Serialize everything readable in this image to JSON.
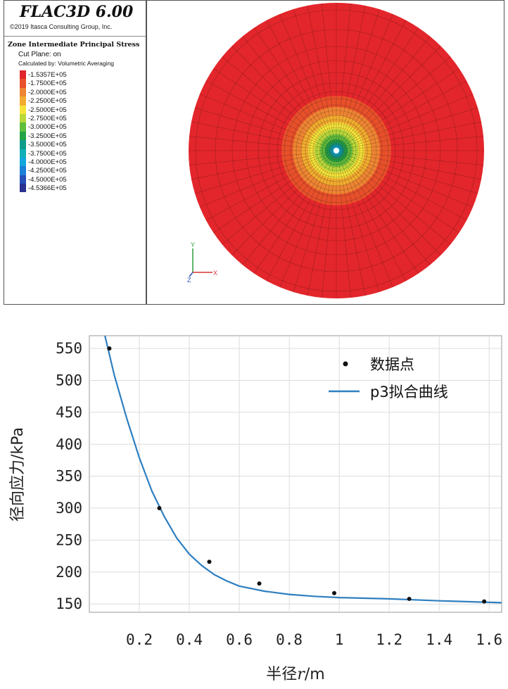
{
  "flac": {
    "title": "FLAC3D 6.00",
    "copyright": "©2019 Itasca Consulting Group, Inc.",
    "plot_title": "Zone Intermediate Principal Stress",
    "cut_plane": "Cut Plane: on",
    "calculated_by": "Calculated by: Volumetric Averaging",
    "legend": [
      {
        "label": "-1.5357E+05",
        "color": "#e3262b"
      },
      {
        "label": "-1.7500E+05",
        "color": "#e8502a"
      },
      {
        "label": "-2.0000E+05",
        "color": "#ee8532"
      },
      {
        "label": "-2.2500E+05",
        "color": "#f3ad2e"
      },
      {
        "label": "-2.5000E+05",
        "color": "#f6e43a"
      },
      {
        "label": "-2.7500E+05",
        "color": "#b8d93a"
      },
      {
        "label": "-3.0000E+05",
        "color": "#5fbe3c"
      },
      {
        "label": "-3.2500E+05",
        "color": "#22a446"
      },
      {
        "label": "-3.5000E+05",
        "color": "#0f9b8a"
      },
      {
        "label": "-3.7500E+05",
        "color": "#10b0b8"
      },
      {
        "label": "-4.0000E+05",
        "color": "#12a6dc"
      },
      {
        "label": "-4.2500E+05",
        "color": "#1c7fd8"
      },
      {
        "label": "-4.5000E+05",
        "color": "#2550b8"
      },
      {
        "label": "-4.5366E+05",
        "color": "#2a3190"
      }
    ],
    "axes_labels": {
      "y": "Y",
      "z": "Z",
      "x": "X"
    }
  },
  "chart_data": {
    "type": "scatter",
    "xlabel_prefix": "半径",
    "xlabel_var": "r",
    "xlabel_unit": "/m",
    "ylabel": "径向应力/kPa",
    "xlim": [
      0.0,
      1.65
    ],
    "ylim": [
      137,
      570
    ],
    "xticks": [
      {
        "v": 0.2,
        "label": "0.2"
      },
      {
        "v": 0.4,
        "label": "0.4"
      },
      {
        "v": 0.6,
        "label": "0.6"
      },
      {
        "v": 0.8,
        "label": "0.8"
      },
      {
        "v": 1.0,
        "label": "1"
      },
      {
        "v": 1.2,
        "label": "1.2"
      },
      {
        "v": 1.4,
        "label": "1.4"
      },
      {
        "v": 1.6,
        "label": "1.6"
      }
    ],
    "yticks": [
      150,
      200,
      250,
      300,
      350,
      400,
      450,
      500,
      550
    ],
    "grid": true,
    "legend_position": "top-right",
    "series": [
      {
        "name": "数据点",
        "kind": "points",
        "color": "#111111",
        "x": [
          0.08,
          0.28,
          0.48,
          0.68,
          0.98,
          1.28,
          1.58
        ],
        "y": [
          550,
          300,
          216,
          182,
          167,
          158,
          154
        ]
      },
      {
        "name": "p3拟合曲线",
        "kind": "line",
        "color": "#2e7fc0",
        "x": [
          0.05,
          0.1,
          0.15,
          0.2,
          0.25,
          0.3,
          0.35,
          0.4,
          0.45,
          0.5,
          0.55,
          0.6,
          0.7,
          0.8,
          0.9,
          1.0,
          1.2,
          1.4,
          1.65
        ],
        "y": [
          590,
          508,
          440,
          379,
          327,
          287,
          253,
          228,
          210,
          196,
          186,
          178,
          170,
          165,
          162,
          160,
          158,
          155,
          152
        ]
      }
    ]
  }
}
